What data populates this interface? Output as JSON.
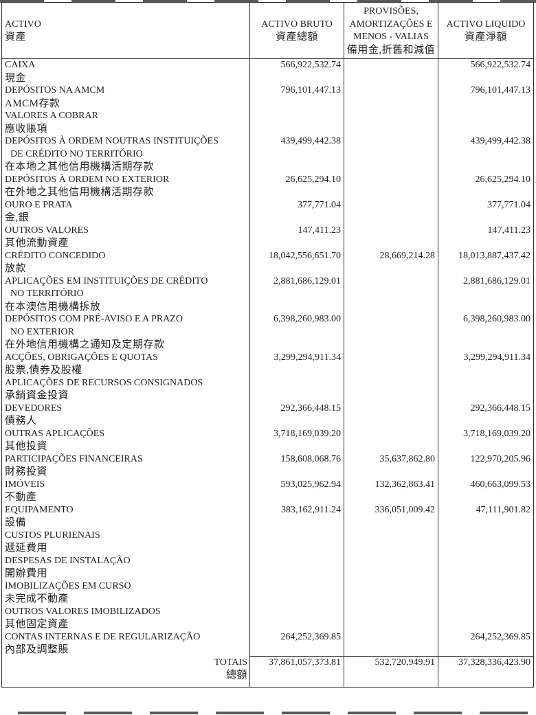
{
  "colors": {
    "background": "#ffffff",
    "text": "#1f1f1f",
    "border": "#2b2b2b"
  },
  "table": {
    "header": {
      "col1": {
        "pt": "ACTIVO",
        "cn": "資產"
      },
      "col2": {
        "pt": "ACTIVO BRUTO",
        "cn": "資產總額"
      },
      "col3": {
        "line1": "PROVISÕES,",
        "line2": "AMORTIZAÇÕES E",
        "line3": "MENOS - VALIAS",
        "line4": "備用金,折舊和減值"
      },
      "col4": {
        "pt": "ACTIVO LIQUIDO",
        "cn": "資產淨額"
      }
    },
    "rows": [
      {
        "lines": [
          {
            "t": "CAIXA"
          },
          {
            "t": "現金",
            "cn": true
          }
        ],
        "values": [
          "566,922,532.74",
          "",
          "566,922,532.74"
        ]
      },
      {
        "lines": [
          {
            "t": "DEPÓSITOS NA AMCM"
          },
          {
            "t": "AMCM存款",
            "cn": true
          }
        ],
        "values": [
          "796,101,447.13",
          "",
          "796,101,447.13"
        ]
      },
      {
        "lines": [
          {
            "t": "VALORES A COBRAR"
          },
          {
            "t": "應收賬項",
            "cn": true
          }
        ],
        "values": [
          "",
          "",
          ""
        ]
      },
      {
        "lines": [
          {
            "t": "DEPÓSITOS À ORDEM NOUTRAS INSTITUIÇÕES"
          },
          {
            "t": "DE CRÉDITO NO TERRITÓRIO",
            "indent": true
          },
          {
            "t": "在本地之其他信用機構活期存款",
            "cn": true
          }
        ],
        "values": [
          "439,499,442.38",
          "",
          "439,499,442.38"
        ]
      },
      {
        "lines": [
          {
            "t": "DEPÓSITOS À ORDEM NO EXTERIOR"
          },
          {
            "t": "在外地之其他信用機構活期存款",
            "cn": true
          }
        ],
        "values": [
          "26,625,294.10",
          "",
          "26,625,294.10"
        ]
      },
      {
        "lines": [
          {
            "t": "OURO E PRATA"
          },
          {
            "t": "金,銀",
            "cn": true
          }
        ],
        "values": [
          "377,771.04",
          "",
          "377,771.04"
        ]
      },
      {
        "lines": [
          {
            "t": "OUTROS VALORES"
          },
          {
            "t": "其他流動資產",
            "cn": true
          }
        ],
        "values": [
          "147,411.23",
          "",
          "147,411.23"
        ]
      },
      {
        "lines": [
          {
            "t": "CRÉDITO CONCEDIDO"
          },
          {
            "t": "放款",
            "cn": true
          }
        ],
        "values": [
          "18,042,556,651.70",
          "28,669,214.28",
          "18,013,887,437.42"
        ]
      },
      {
        "lines": [
          {
            "t": "APLICAÇÕES EM INSTITUIÇÕES DE CRÉDITO"
          },
          {
            "t": "NO TERRITÓRIO",
            "indent": true
          },
          {
            "t": "在本澳信用機構拆放",
            "cn": true
          }
        ],
        "values": [
          "2,881,686,129.01",
          "",
          "2,881,686,129.01"
        ]
      },
      {
        "lines": [
          {
            "t": "DEPÓSITOS COM PRÉ-AVISO E A PRAZO"
          },
          {
            "t": "NO EXTERIOR",
            "indent": true
          },
          {
            "t": "在外地信用機構之通知及定期存款",
            "cn": true
          }
        ],
        "values": [
          "6,398,260,983.00",
          "",
          "6,398,260,983.00"
        ]
      },
      {
        "lines": [
          {
            "t": "ACÇÕES, OBRIGAÇÕES E QUOTAS"
          },
          {
            "t": "股票,債券及股權",
            "cn": true
          }
        ],
        "values": [
          "3,299,294,911.34",
          "",
          "3,299,294,911.34"
        ]
      },
      {
        "lines": [
          {
            "t": "APLICAÇÕES DE RECURSOS CONSIGNADOS"
          },
          {
            "t": "承銷資金投資",
            "cn": true
          }
        ],
        "values": [
          "",
          "",
          ""
        ]
      },
      {
        "lines": [
          {
            "t": "DEVEDORES"
          },
          {
            "t": "債務人",
            "cn": true
          }
        ],
        "values": [
          "292,366,448.15",
          "",
          "292,366,448.15"
        ]
      },
      {
        "lines": [
          {
            "t": "OUTRAS APLICAÇÕES"
          },
          {
            "t": "其他投資",
            "cn": true
          }
        ],
        "values": [
          "3,718,169,039.20",
          "",
          "3,718,169,039.20"
        ]
      },
      {
        "lines": [
          {
            "t": "PARTICIPAÇÕES FINANCEIRAS"
          },
          {
            "t": "財務投資",
            "cn": true
          }
        ],
        "values": [
          "158,608,068.76",
          "35,637,862.80",
          "122,970,205.96"
        ]
      },
      {
        "lines": [
          {
            "t": "IMÓVEIS"
          },
          {
            "t": "不動產",
            "cn": true
          }
        ],
        "values": [
          "593,025,962.94",
          "132,362,863.41",
          "460,663,099.53"
        ]
      },
      {
        "lines": [
          {
            "t": "EQUIPAMENTO"
          },
          {
            "t": "設備",
            "cn": true
          }
        ],
        "values": [
          "383,162,911.24",
          "336,051,009.42",
          "47,111,901.82"
        ]
      },
      {
        "lines": [
          {
            "t": "CUSTOS PLURIENAIS"
          },
          {
            "t": "遞延費用",
            "cn": true
          }
        ],
        "values": [
          "",
          "",
          ""
        ]
      },
      {
        "lines": [
          {
            "t": "DESPESAS DE INSTALAÇÃO"
          },
          {
            "t": "開辦費用",
            "cn": true
          }
        ],
        "values": [
          "",
          "",
          ""
        ]
      },
      {
        "lines": [
          {
            "t": "IMOBILIZAÇÕES EM CURSO"
          },
          {
            "t": "未完成不動產",
            "cn": true
          }
        ],
        "values": [
          "",
          "",
          ""
        ]
      },
      {
        "lines": [
          {
            "t": "OUTROS VALORES IMOBILIZADOS"
          },
          {
            "t": "其他固定資產",
            "cn": true
          }
        ],
        "values": [
          "",
          "",
          ""
        ]
      },
      {
        "lines": [
          {
            "t": "CONTAS INTERNAS E DE REGULARIZAÇÃO"
          },
          {
            "t": "內部及調整賬",
            "cn": true
          }
        ],
        "values": [
          "264,252,369.85",
          "",
          "264,252,369.85"
        ]
      }
    ],
    "totals": {
      "label_pt": "TOTAIS",
      "label_cn": "總額",
      "values": [
        "37,861,057,373.81",
        "532,720,949.91",
        "37,328,336,423.90"
      ]
    }
  }
}
